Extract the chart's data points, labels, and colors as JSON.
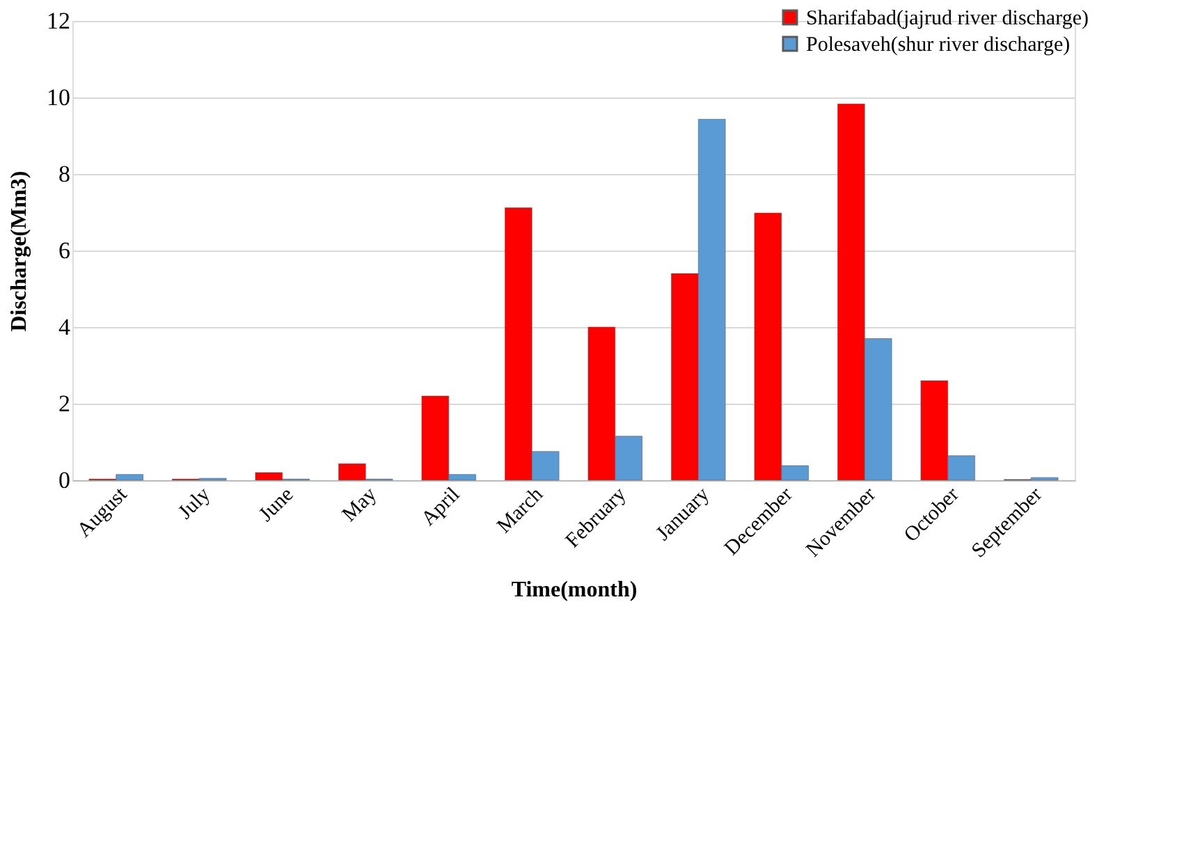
{
  "chart_data": {
    "type": "bar",
    "xlabel": "Time(month)",
    "ylabel": "Discharge(Mm3)",
    "categories": [
      "August",
      "July",
      "June",
      "May",
      "April",
      "March",
      "February",
      "January",
      "December",
      "November",
      "October",
      "September"
    ],
    "series": [
      {
        "name": "Sharifabad(jajrud river discharge)",
        "color": "#ff0000",
        "values": [
          0.03,
          0.03,
          0.2,
          0.43,
          2.2,
          7.12,
          4.0,
          5.4,
          6.98,
          9.83,
          2.6,
          0.02
        ]
      },
      {
        "name": "Polesaveh(shur river discharge)",
        "color": "#5b9bd5",
        "values": [
          0.15,
          0.05,
          0.03,
          0.03,
          0.15,
          0.75,
          1.15,
          9.43,
          0.38,
          3.7,
          0.64,
          0.07
        ]
      }
    ],
    "ylim": [
      0,
      12
    ],
    "yticks": [
      0,
      2,
      4,
      6,
      8,
      10,
      12
    ],
    "grid": "y",
    "legend": "top right"
  }
}
